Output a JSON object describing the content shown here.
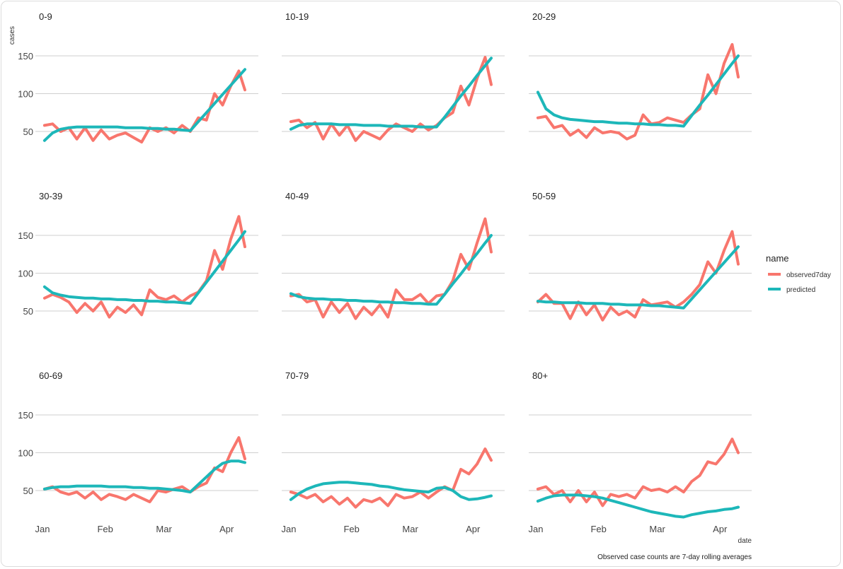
{
  "chart_data": {
    "type": "line",
    "layout": "facet grid 3x3, shared y axis",
    "ylabel": "cases",
    "xlabel": "date",
    "caption": "Observed case counts are 7-day rolling averages",
    "legend": {
      "title": "name",
      "placement": "right"
    },
    "yticks": [
      50,
      100,
      150
    ],
    "ylim": [
      20,
      186
    ],
    "xticks": [
      {
        "date": "2020-01-01",
        "label": "Jan"
      },
      {
        "date": "2020-02-01",
        "label": "Feb"
      },
      {
        "date": "2020-03-01",
        "label": "Mar"
      },
      {
        "date": "2020-04-01",
        "label": "Apr"
      }
    ],
    "xlim": [
      "2020-01-01",
      "2020-04-11"
    ],
    "grid": "horizontal major",
    "series_colors": {
      "observed7day": "#F8766D",
      "predicted": "#1DB7B9"
    },
    "x": [
      "2020-01-02",
      "2020-01-06",
      "2020-01-10",
      "2020-01-14",
      "2020-01-18",
      "2020-01-22",
      "2020-01-26",
      "2020-01-30",
      "2020-02-03",
      "2020-02-07",
      "2020-02-11",
      "2020-02-15",
      "2020-02-19",
      "2020-02-23",
      "2020-02-27",
      "2020-03-02",
      "2020-03-06",
      "2020-03-10",
      "2020-03-14",
      "2020-03-18",
      "2020-03-22",
      "2020-03-26",
      "2020-03-30",
      "2020-04-03",
      "2020-04-07",
      "2020-04-10"
    ],
    "facets": [
      {
        "title": "0-9",
        "series": [
          {
            "name": "observed7day",
            "values": [
              58,
              60,
              50,
              55,
              40,
              55,
              38,
              52,
              40,
              45,
              48,
              42,
              36,
              55,
              50,
              55,
              48,
              58,
              50,
              68,
              65,
              100,
              85,
              110,
              130,
              105
            ]
          },
          {
            "name": "predicted",
            "values": [
              38,
              48,
              53,
              55,
              56,
              56,
              56,
              56,
              56,
              56,
              55,
              55,
              55,
              54,
              54,
              53,
              53,
              52,
              51,
              63,
              75,
              87,
              99,
              111,
              123,
              132
            ]
          }
        ]
      },
      {
        "title": "10-19",
        "series": [
          {
            "name": "observed7day",
            "values": [
              63,
              65,
              55,
              62,
              40,
              60,
              45,
              58,
              38,
              50,
              45,
              40,
              52,
              60,
              55,
              50,
              60,
              52,
              58,
              68,
              75,
              110,
              85,
              120,
              148,
              112
            ]
          },
          {
            "name": "predicted",
            "values": [
              53,
              58,
              60,
              60,
              60,
              60,
              59,
              59,
              59,
              58,
              58,
              58,
              57,
              57,
              57,
              57,
              56,
              56,
              56,
              69,
              83,
              97,
              110,
              124,
              137,
              147
            ]
          }
        ]
      },
      {
        "title": "20-29",
        "series": [
          {
            "name": "observed7day",
            "values": [
              68,
              70,
              55,
              58,
              45,
              52,
              42,
              55,
              48,
              50,
              48,
              40,
              45,
              72,
              60,
              62,
              68,
              65,
              62,
              72,
              80,
              125,
              100,
              140,
              165,
              122
            ]
          },
          {
            "name": "predicted",
            "values": [
              102,
              80,
              72,
              68,
              66,
              65,
              64,
              63,
              63,
              62,
              61,
              61,
              60,
              60,
              59,
              59,
              58,
              58,
              57,
              71,
              85,
              98,
              112,
              126,
              140,
              150
            ]
          }
        ]
      },
      {
        "title": "30-39",
        "series": [
          {
            "name": "observed7day",
            "values": [
              67,
              72,
              68,
              62,
              48,
              60,
              50,
              62,
              42,
              55,
              48,
              58,
              45,
              78,
              68,
              65,
              70,
              62,
              70,
              75,
              90,
              130,
              105,
              145,
              175,
              135
            ]
          },
          {
            "name": "predicted",
            "values": [
              82,
              74,
              71,
              69,
              68,
              67,
              67,
              66,
              66,
              65,
              65,
              64,
              64,
              63,
              63,
              62,
              62,
              61,
              60,
              74,
              88,
              102,
              116,
              130,
              144,
              155
            ]
          }
        ]
      },
      {
        "title": "40-49",
        "series": [
          {
            "name": "observed7day",
            "values": [
              70,
              72,
              62,
              65,
              42,
              62,
              48,
              60,
              40,
              55,
              45,
              58,
              42,
              78,
              65,
              65,
              72,
              60,
              70,
              72,
              90,
              125,
              105,
              140,
              172,
              128
            ]
          },
          {
            "name": "predicted",
            "values": [
              73,
              69,
              67,
              66,
              66,
              65,
              65,
              64,
              64,
              63,
              63,
              62,
              62,
              61,
              61,
              60,
              60,
              59,
              59,
              72,
              86,
              99,
              113,
              126,
              140,
              150
            ]
          }
        ]
      },
      {
        "title": "50-59",
        "series": [
          {
            "name": "observed7day",
            "values": [
              62,
              72,
              60,
              60,
              40,
              62,
              45,
              58,
              38,
              55,
              45,
              50,
              42,
              65,
              58,
              60,
              62,
              55,
              62,
              72,
              85,
              115,
              100,
              130,
              155,
              112
            ]
          },
          {
            "name": "predicted",
            "values": [
              63,
              62,
              62,
              61,
              61,
              61,
              60,
              60,
              60,
              59,
              59,
              58,
              58,
              58,
              57,
              57,
              56,
              55,
              54,
              66,
              78,
              90,
              102,
              114,
              126,
              135
            ]
          }
        ]
      },
      {
        "title": "60-69",
        "series": [
          {
            "name": "observed7day",
            "values": [
              52,
              55,
              48,
              45,
              48,
              40,
              48,
              38,
              45,
              42,
              38,
              45,
              40,
              35,
              50,
              48,
              52,
              55,
              48,
              55,
              60,
              80,
              75,
              100,
              120,
              92
            ]
          },
          {
            "name": "predicted",
            "values": [
              52,
              54,
              55,
              55,
              56,
              56,
              56,
              56,
              55,
              55,
              55,
              54,
              54,
              53,
              53,
              52,
              51,
              50,
              48,
              58,
              68,
              78,
              86,
              89,
              89,
              87
            ]
          }
        ]
      },
      {
        "title": "70-79",
        "series": [
          {
            "name": "observed7day",
            "values": [
              48,
              45,
              40,
              45,
              35,
              42,
              32,
              40,
              28,
              38,
              35,
              40,
              30,
              45,
              40,
              42,
              48,
              40,
              48,
              55,
              50,
              78,
              72,
              85,
              105,
              90
            ]
          },
          {
            "name": "predicted",
            "values": [
              38,
              46,
              52,
              56,
              59,
              60,
              61,
              61,
              60,
              59,
              58,
              56,
              55,
              53,
              51,
              50,
              49,
              48,
              53,
              54,
              50,
              42,
              38,
              39,
              41,
              43
            ]
          }
        ]
      },
      {
        "title": "80+",
        "series": [
          {
            "name": "observed7day",
            "values": [
              52,
              55,
              45,
              50,
              35,
              50,
              35,
              48,
              30,
              45,
              42,
              45,
              40,
              55,
              50,
              52,
              48,
              55,
              48,
              62,
              70,
              88,
              85,
              98,
              118,
              100
            ]
          },
          {
            "name": "predicted",
            "values": [
              36,
              40,
              43,
              44,
              44,
              44,
              43,
              42,
              40,
              37,
              34,
              31,
              28,
              25,
              22,
              20,
              18,
              16,
              15,
              18,
              20,
              22,
              23,
              25,
              26,
              28
            ]
          }
        ]
      }
    ]
  }
}
